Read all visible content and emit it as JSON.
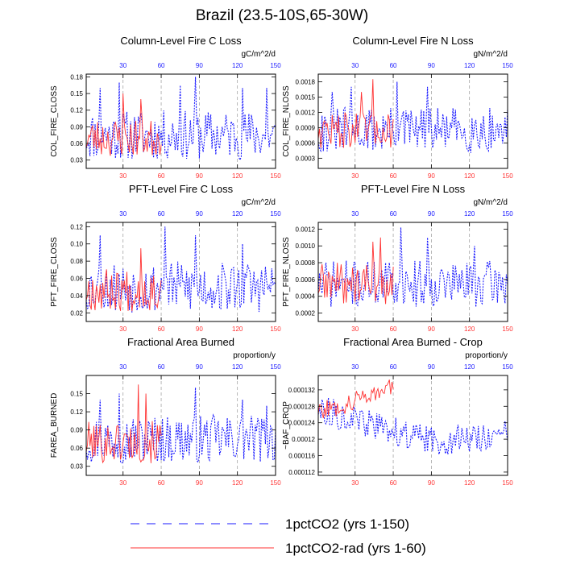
{
  "figure_title": "Brazil (23.5-10S,65-30W)",
  "colors": {
    "series1": "#1a1aff",
    "series2": "#ff3333",
    "grid": "#999999"
  },
  "legend": [
    {
      "label": "1pctCO2 (yrs 1-150)",
      "style": "dashed-blue"
    },
    {
      "label": "1pctCO2-rad (yrs 1-60)",
      "style": "solid-red"
    }
  ],
  "chart_data": [
    {
      "type": "line",
      "title": "Column-Level Fire C Loss",
      "units": "gC/m^2/d",
      "ylabel": "COL_FIRE_CLOSS",
      "xlim": [
        1,
        150
      ],
      "ylim": [
        0.015,
        0.185
      ],
      "yticks": [
        "0.03",
        "0.06",
        "0.09",
        "0.12",
        "0.15",
        "0.18"
      ],
      "xticks_bottom": [
        "30",
        "60",
        "90",
        "120",
        "150"
      ],
      "xticks_top": [
        "30",
        "60",
        "90",
        "120",
        "150"
      ],
      "series": [
        {
          "x_range": [
            1,
            150
          ],
          "base": 0.075,
          "amp": 0.045,
          "spikes": [
            [
              12,
              0.16
            ],
            [
              27,
              0.17
            ],
            [
              75,
              0.165
            ],
            [
              87,
              0.18
            ],
            [
              124,
              0.16
            ],
            [
              143,
              0.16
            ]
          ],
          "seed": 11
        },
        {
          "x_range": [
            1,
            60
          ],
          "base": 0.07,
          "amp": 0.035,
          "spikes": [
            [
              30,
              0.15
            ],
            [
              44,
              0.14
            ]
          ],
          "seed": 23
        }
      ]
    },
    {
      "type": "line",
      "title": "Column-Level Fire N Loss",
      "units": "gN/m^2/d",
      "ylabel": "COL_FIRE_NLOSS",
      "xlim": [
        1,
        150
      ],
      "ylim": [
        0.0001,
        0.00195
      ],
      "yticks": [
        "0.0003",
        "0.0006",
        "0.0009",
        "0.0012",
        "0.0015",
        "0.0018"
      ],
      "xticks_bottom": [
        "30",
        "60",
        "90",
        "120",
        "150"
      ],
      "xticks_top": [
        "30",
        "60",
        "90",
        "120",
        "150"
      ],
      "series": [
        {
          "x_range": [
            1,
            150
          ],
          "base": 0.00085,
          "amp": 0.00045,
          "spikes": [
            [
              12,
              0.0016
            ],
            [
              27,
              0.0017
            ],
            [
              63,
              0.0018
            ],
            [
              87,
              0.0017
            ]
          ],
          "seed": 31
        },
        {
          "x_range": [
            1,
            60
          ],
          "base": 0.00085,
          "amp": 0.00035,
          "spikes": [
            [
              44,
              0.00185
            ],
            [
              35,
              0.0016
            ]
          ],
          "seed": 47
        }
      ]
    },
    {
      "type": "line",
      "title": "PFT-Level Fire C Loss",
      "units": "gC/m^2/d",
      "ylabel": "PFT_FIRE_CLOSS",
      "xlim": [
        1,
        150
      ],
      "ylim": [
        0.01,
        0.125
      ],
      "yticks": [
        "0.02",
        "0.04",
        "0.06",
        "0.08",
        "0.10",
        "0.12"
      ],
      "xticks_bottom": [
        "30",
        "60",
        "90",
        "120",
        "150"
      ],
      "xticks_top": [
        "30",
        "60",
        "90",
        "120",
        "150"
      ],
      "series": [
        {
          "x_range": [
            1,
            150
          ],
          "base": 0.05,
          "amp": 0.03,
          "spikes": [
            [
              12,
              0.11
            ],
            [
              63,
              0.12
            ],
            [
              87,
              0.11
            ],
            [
              124,
              0.1
            ]
          ],
          "seed": 53
        },
        {
          "x_range": [
            1,
            60
          ],
          "base": 0.047,
          "amp": 0.025,
          "spikes": [
            [
              44,
              0.095
            ]
          ],
          "seed": 67
        }
      ]
    },
    {
      "type": "line",
      "title": "PFT-Level Fire N Loss",
      "units": "gN/m^2/d",
      "ylabel": "PFT_FIRE_NLOSS",
      "xlim": [
        1,
        150
      ],
      "ylim": [
        0.0001,
        0.00128
      ],
      "yticks": [
        "0.0002",
        "0.0004",
        "0.0006",
        "0.0008",
        "0.0010",
        "0.0012"
      ],
      "xticks_bottom": [
        "30",
        "60",
        "90",
        "120",
        "150"
      ],
      "xticks_top": [
        "30",
        "60",
        "90",
        "120",
        "150"
      ],
      "series": [
        {
          "x_range": [
            1,
            150
          ],
          "base": 0.00055,
          "amp": 0.00028,
          "spikes": [
            [
              66,
              0.00122
            ],
            [
              87,
              0.0011
            ],
            [
              124,
              0.001
            ]
          ],
          "seed": 71
        },
        {
          "x_range": [
            1,
            60
          ],
          "base": 0.00055,
          "amp": 0.00025,
          "spikes": [
            [
              44,
              0.00105
            ],
            [
              50,
              0.0011
            ]
          ],
          "seed": 89
        }
      ]
    },
    {
      "type": "line",
      "title": "Fractional Area Burned",
      "units": "proportion/y",
      "ylabel": "FAREA_BURNED",
      "xlim": [
        1,
        150
      ],
      "ylim": [
        0.015,
        0.18
      ],
      "yticks": [
        "0.03",
        "0.06",
        "0.09",
        "0.12",
        "0.15"
      ],
      "xticks_bottom": [
        "30",
        "60",
        "90",
        "120",
        "150"
      ],
      "xticks_top": [
        "30",
        "60",
        "90",
        "120",
        "150"
      ],
      "series": [
        {
          "x_range": [
            1,
            150
          ],
          "base": 0.075,
          "amp": 0.04,
          "spikes": [
            [
              12,
              0.14
            ],
            [
              27,
              0.15
            ],
            [
              87,
              0.16
            ],
            [
              124,
              0.14
            ],
            [
              143,
              0.13
            ]
          ],
          "seed": 97
        },
        {
          "x_range": [
            1,
            60
          ],
          "base": 0.07,
          "amp": 0.035,
          "spikes": [
            [
              42,
              0.165
            ],
            [
              48,
              0.15
            ]
          ],
          "seed": 101
        }
      ]
    },
    {
      "type": "line",
      "title": "Fractional Area Burned - Crop",
      "units": "proportion/y",
      "ylabel": "~BAF_CROP",
      "xlim": [
        1,
        150
      ],
      "ylim": [
        0.0001112,
        0.0001355
      ],
      "yticks": [
        "0.000112",
        "0.000116",
        "0.00012",
        "0.000124",
        "0.000128",
        "0.000132"
      ],
      "xticks_bottom": [
        "30",
        "60",
        "90",
        "120",
        "150"
      ],
      "xticks_top": [
        "30",
        "60",
        "90",
        "120",
        "150"
      ],
      "series": [
        {
          "x_range": [
            1,
            150
          ],
          "trend": [
            [
              1,
              0.0001275
            ],
            [
              30,
              0.0001245
            ],
            [
              60,
              0.000122
            ],
            [
              90,
              0.0001195
            ],
            [
              150,
              0.000121
            ]
          ],
          "amp": 3.5e-06,
          "seed": 113
        },
        {
          "x_range": [
            1,
            60
          ],
          "trend": [
            [
              1,
              0.000127
            ],
            [
              20,
              0.000128
            ],
            [
              40,
              0.000131
            ],
            [
              60,
              0.0001325
            ]
          ],
          "amp": 2.2e-06,
          "seed": 127
        }
      ]
    }
  ]
}
